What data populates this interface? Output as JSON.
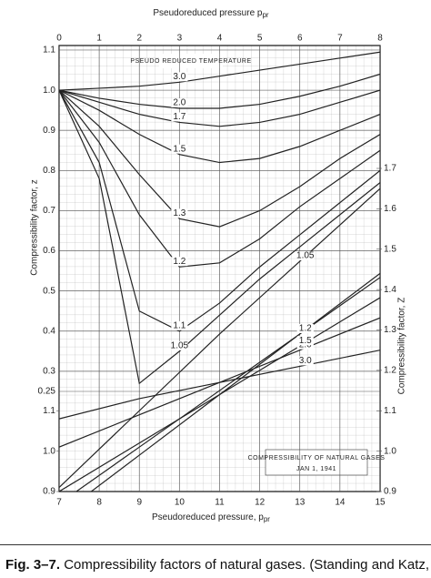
{
  "chart_data": [
    {
      "type": "line",
      "x_label": "Pseudoreduced pressure p",
      "x_label_sub": "pr",
      "y_label": "Compressibility factor, z",
      "annotation": "PSEUDO REDUCED TEMPERATURE",
      "x": [
        0,
        1,
        2,
        3,
        4,
        5,
        6,
        7,
        8
      ],
      "xlim": [
        0,
        8
      ],
      "xticks": [
        0,
        1,
        2,
        3,
        4,
        5,
        6,
        7,
        8
      ],
      "ylim": [
        0.25,
        1.1
      ],
      "yticks": [
        0.25,
        0.3,
        0.4,
        0.5,
        0.6,
        0.7,
        0.8,
        0.9,
        {
          "value": 1,
          "label": "1.0"
        },
        1.1
      ],
      "grid": true,
      "series": [
        {
          "name": "3.0",
          "color": "#222",
          "values": [
            1,
            1.005,
            1.01,
            1.02,
            1.035,
            1.05,
            1.065,
            1.08,
            1.095
          ]
        },
        {
          "name": "2.0",
          "color": "#222",
          "values": [
            1,
            0.98,
            0.965,
            0.955,
            0.955,
            0.965,
            0.985,
            1.01,
            1.04
          ]
        },
        {
          "name": "1.7",
          "color": "#222",
          "values": [
            1,
            0.97,
            0.94,
            0.92,
            0.91,
            0.92,
            0.94,
            0.97,
            1.0
          ]
        },
        {
          "name": "1.5",
          "color": "#222",
          "values": [
            1,
            0.95,
            0.89,
            0.84,
            0.82,
            0.83,
            0.86,
            0.9,
            0.94
          ]
        },
        {
          "name": "1.3",
          "color": "#222",
          "values": [
            1,
            0.91,
            0.79,
            0.68,
            0.66,
            0.7,
            0.76,
            0.83,
            0.89
          ]
        },
        {
          "name": "1.2",
          "color": "#222",
          "values": [
            1,
            0.87,
            0.69,
            0.56,
            0.57,
            0.63,
            0.71,
            0.78,
            0.85
          ]
        },
        {
          "name": "1.1",
          "color": "#222",
          "values": [
            1,
            0.82,
            0.45,
            0.4,
            0.47,
            0.56,
            0.64,
            0.72,
            0.8
          ]
        },
        {
          "name": "1.05",
          "color": "#222",
          "values": [
            1,
            0.78,
            0.27,
            0.35,
            0.44,
            0.53,
            0.61,
            0.69,
            0.77
          ]
        }
      ]
    },
    {
      "type": "line",
      "x_label": "Pseudoreduced pressure, p",
      "x_label_sub": "pr",
      "y2_label": "Compressibility factor, Z",
      "annotation": "COMPRESSIBILITY OF NATURAL GASES",
      "annotation_date": "JAN 1, 1941",
      "x": [
        7,
        9,
        11,
        13,
        15
      ],
      "xlim": [
        7,
        15
      ],
      "xticks": [
        7,
        8,
        9,
        10,
        11,
        12,
        13,
        14,
        15
      ],
      "ylim": [
        0.9,
        1.7
      ],
      "yticks": [
        0.9,
        {
          "value": 1,
          "label": "1.0"
        },
        1.1
      ],
      "y2lim": [
        0.9,
        1.7
      ],
      "y2ticks": [
        0.9,
        {
          "value": 1,
          "label": "1.0"
        },
        1.1,
        1.2,
        1.3,
        1.4,
        1.5,
        1.6,
        1.7
      ],
      "series": [
        {
          "name": "3.0",
          "color": "#222",
          "values": [
            1.08,
            1.13,
            1.17,
            1.21,
            1.25
          ]
        },
        {
          "name": "2.0",
          "color": "#222",
          "values": [
            1.01,
            1.09,
            1.17,
            1.25,
            1.33
          ]
        },
        {
          "name": "1.5",
          "color": "#222",
          "values": [
            0.9,
            1.02,
            1.14,
            1.26,
            1.38
          ]
        },
        {
          "name": "1.3",
          "color": "#222",
          "values": [
            0.87,
            1.01,
            1.15,
            1.29,
            1.43
          ]
        },
        {
          "name": "1.2",
          "color": "#222",
          "values": [
            0.84,
            0.99,
            1.14,
            1.29,
            1.44
          ]
        },
        {
          "name": "1.05",
          "color": "#222",
          "values": [
            0.91,
            1.1,
            1.29,
            1.47,
            1.65
          ]
        }
      ]
    }
  ],
  "caption": {
    "label": "Fig. 3–7.",
    "text": "Compressibility factors of natural gases. (Standing and Katz,"
  }
}
